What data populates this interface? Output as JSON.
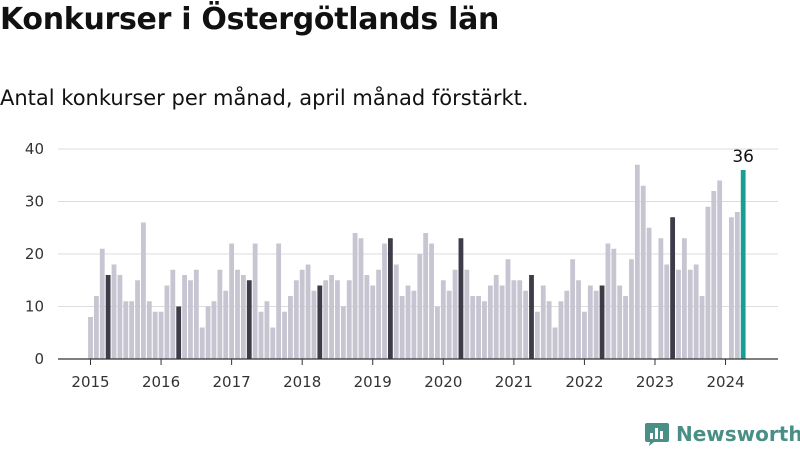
{
  "header": {
    "title": "Konkurser i Östergötlands län",
    "subtitle": "Antal konkurser per månad, april månad förstärkt."
  },
  "brand": {
    "name": "Newsworthy",
    "color": "#4a8f86"
  },
  "chart_data": {
    "type": "bar",
    "x_start": "2015-01",
    "values": [
      8,
      12,
      21,
      16,
      18,
      16,
      11,
      11,
      15,
      26,
      11,
      9,
      9,
      14,
      17,
      10,
      16,
      15,
      17,
      6,
      10,
      11,
      17,
      13,
      22,
      17,
      16,
      15,
      22,
      9,
      11,
      6,
      22,
      9,
      12,
      15,
      17,
      18,
      13,
      14,
      15,
      16,
      15,
      10,
      15,
      24,
      23,
      16,
      14,
      17,
      22,
      23,
      18,
      12,
      14,
      13,
      20,
      24,
      22,
      10,
      15,
      13,
      17,
      23,
      17,
      12,
      12,
      11,
      14,
      16,
      14,
      19,
      15,
      15,
      13,
      16,
      9,
      14,
      11,
      6,
      11,
      13,
      19,
      15,
      9,
      14,
      13,
      14,
      22,
      21,
      14,
      12,
      19,
      37,
      33,
      25,
      0,
      23,
      18,
      27,
      17,
      23,
      17,
      18,
      12,
      29,
      32,
      34,
      0,
      27,
      28,
      36
    ],
    "highlight_month": "April",
    "annotation": {
      "value": 36,
      "label": "36"
    },
    "ylim": [
      0,
      40
    ],
    "y_ticks": [
      0,
      10,
      20,
      30,
      40
    ],
    "x_tick_labels": [
      "2015",
      "2016",
      "2017",
      "2018",
      "2019",
      "2020",
      "2021",
      "2022",
      "2023",
      "2024"
    ],
    "grid": true,
    "colors": {
      "default": "#c6c5d1",
      "highlight": "#3d3c48",
      "latest": "#1a9e94",
      "grid": "#dddddd",
      "axis": "#333333"
    }
  }
}
